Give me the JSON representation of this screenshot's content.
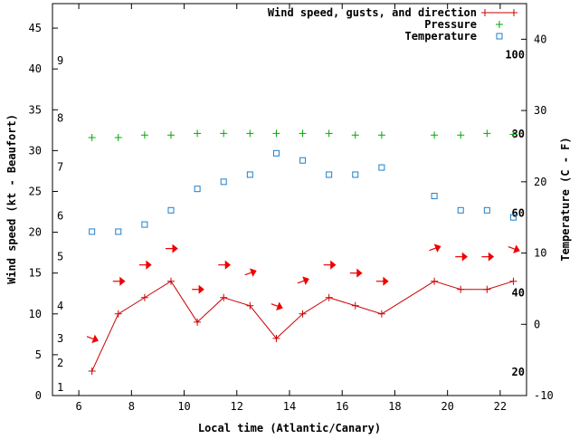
{
  "chart_data": {
    "type": "line",
    "xlabel": "Local time (Atlantic/Canary)",
    "ylabel_left": "Wind speed (kt - Beaufort)",
    "ylabel_right": "Temperature (C - F)",
    "x_range": [
      5,
      23
    ],
    "x_ticks": [
      6,
      8,
      10,
      12,
      14,
      16,
      18,
      20,
      22
    ],
    "y_left_range": [
      0,
      48
    ],
    "y_left_ticks": [
      0,
      5,
      10,
      15,
      20,
      25,
      30,
      35,
      40,
      45
    ],
    "y_right_range": [
      -10,
      45
    ],
    "y_right_ticks": [
      -10,
      0,
      10,
      20,
      30,
      40
    ],
    "beaufort_labels": [
      {
        "label": "1",
        "kt": 1
      },
      {
        "label": "2",
        "kt": 4
      },
      {
        "label": "3",
        "kt": 7
      },
      {
        "label": "4",
        "kt": 11
      },
      {
        "label": "5",
        "kt": 17
      },
      {
        "label": "6",
        "kt": 22
      },
      {
        "label": "7",
        "kt": 28
      },
      {
        "label": "8",
        "kt": 34
      },
      {
        "label": "9",
        "kt": 41
      }
    ],
    "fahrenheit_labels": [
      {
        "label": "20",
        "c": -6.7
      },
      {
        "label": "40",
        "c": 4.4
      },
      {
        "label": "60",
        "c": 15.6
      },
      {
        "label": "80",
        "c": 26.7
      },
      {
        "label": "100",
        "c": 37.8
      }
    ],
    "series": [
      {
        "name": "Wind speed, gusts, and direction",
        "color": "#cc0000",
        "axis": "left",
        "x": [
          6.5,
          7.5,
          8.5,
          9.5,
          10.5,
          11.5,
          12.5,
          13.5,
          14.5,
          15.5,
          16.5,
          17.5,
          19.5,
          20.5,
          21.5,
          22.5
        ],
        "values": [
          3,
          10,
          12,
          14,
          9,
          12,
          11,
          7,
          10,
          12,
          11,
          10,
          14,
          13,
          13,
          14
        ]
      },
      {
        "name": "Pressure",
        "color": "#00aa00",
        "axis": "left",
        "x": [
          6.5,
          7.5,
          8.5,
          9.5,
          10.5,
          11.5,
          12.5,
          13.5,
          14.5,
          15.5,
          16.5,
          17.5,
          19.5,
          20.5,
          21.5,
          22.5
        ],
        "values": [
          31.6,
          31.6,
          31.9,
          31.9,
          32.1,
          32.1,
          32.1,
          32.1,
          32.1,
          32.1,
          31.9,
          31.9,
          31.9,
          31.9,
          32.1,
          32.0
        ]
      },
      {
        "name": "Temperature",
        "color": "#1e7fc8",
        "axis": "right",
        "x": [
          6.5,
          7.5,
          8.5,
          9.5,
          10.5,
          11.5,
          12.5,
          13.5,
          14.5,
          15.5,
          16.5,
          17.5,
          19.5,
          20.5,
          21.5,
          22.5
        ],
        "values": [
          13,
          13,
          14,
          16,
          19,
          20,
          21,
          24,
          23,
          21,
          21,
          22,
          18,
          16,
          16,
          15
        ]
      }
    ],
    "direction_arrows": {
      "color": "#ee0000",
      "x": [
        6.5,
        7.5,
        8.5,
        9.5,
        10.5,
        11.5,
        12.5,
        13.5,
        14.5,
        15.5,
        16.5,
        17.5,
        19.5,
        20.5,
        21.5,
        22.5
      ],
      "kt": [
        7,
        14,
        16,
        18,
        13,
        16,
        15,
        11,
        14,
        16,
        15,
        14,
        18,
        17,
        17,
        18
      ],
      "direction_deg": [
        20,
        0,
        0,
        0,
        0,
        0,
        -20,
        20,
        -20,
        0,
        0,
        0,
        -20,
        0,
        0,
        20
      ]
    }
  }
}
